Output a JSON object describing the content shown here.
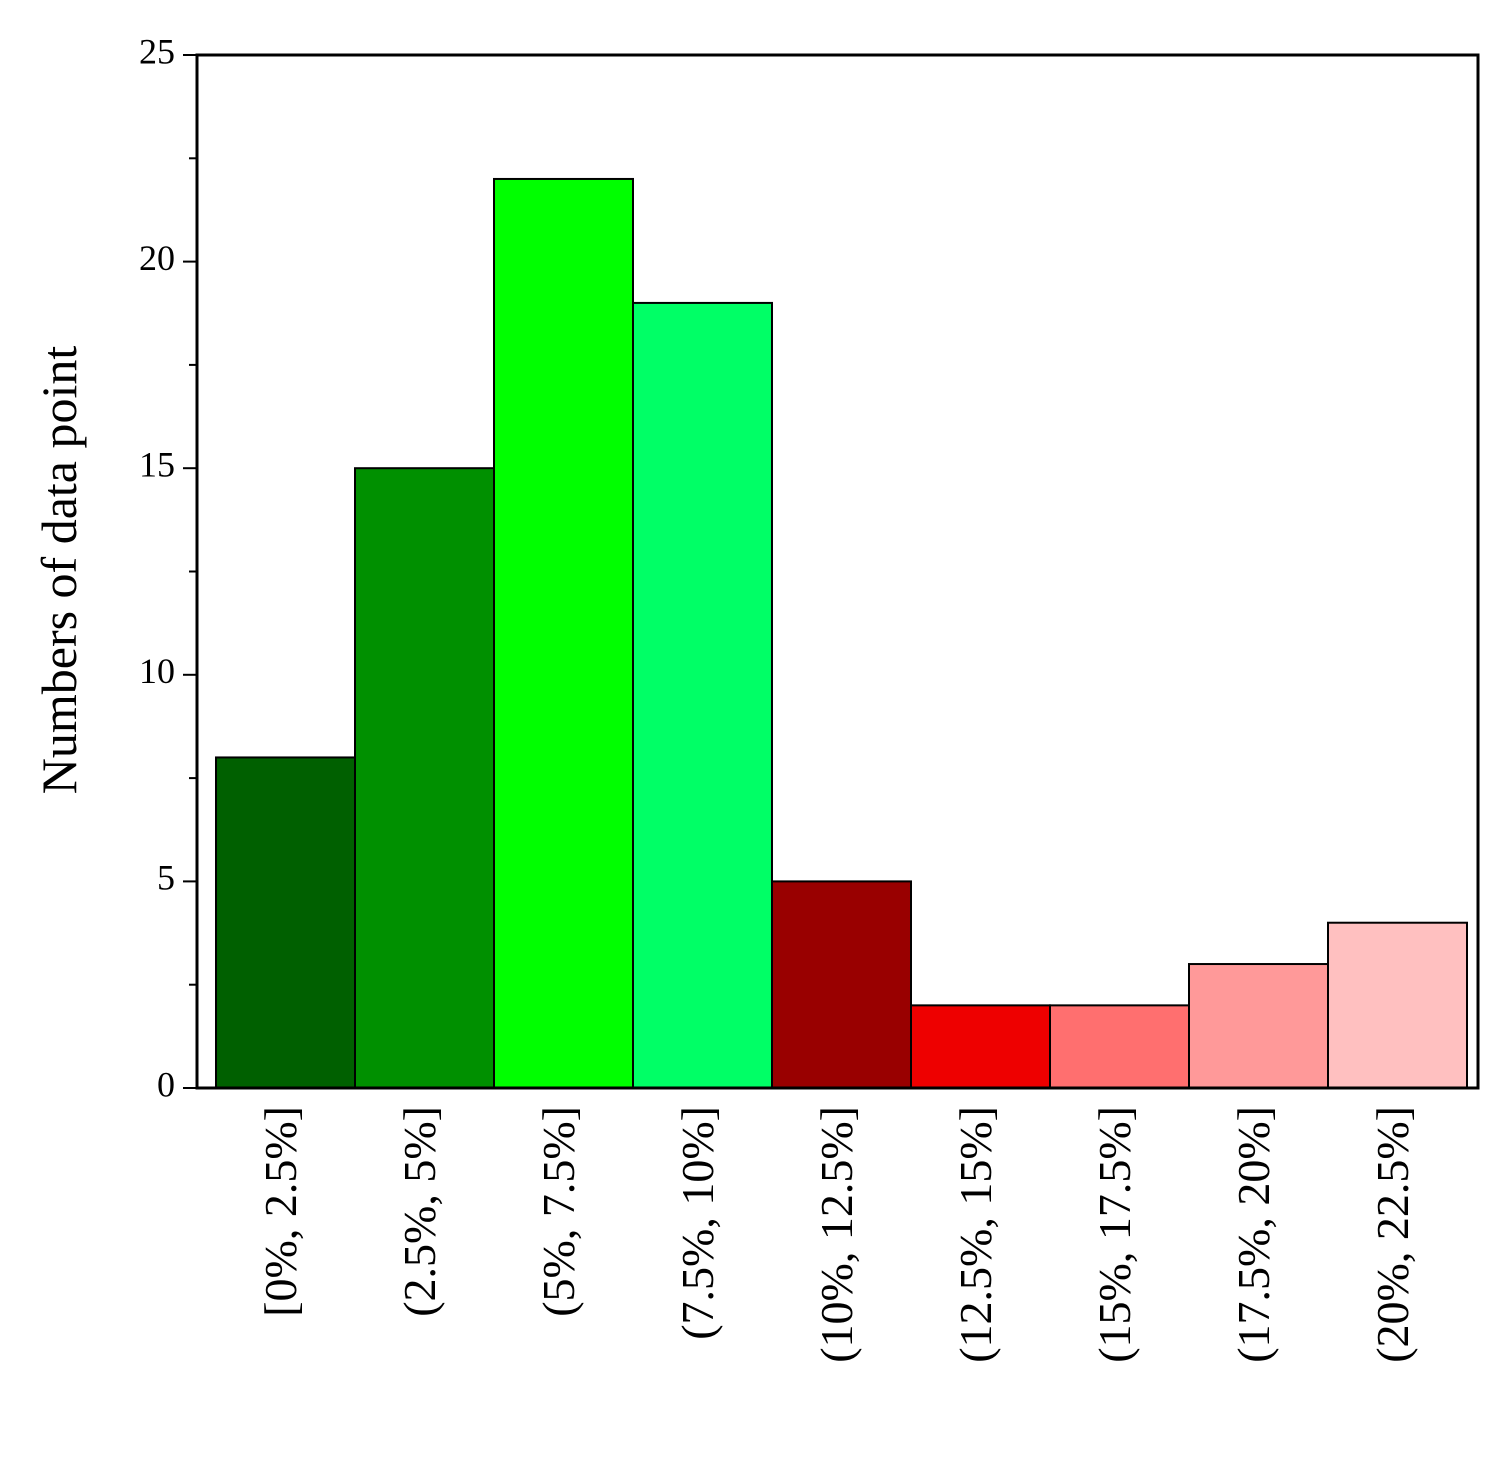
{
  "chart_data": {
    "type": "bar",
    "y_label": "Numbers of data point",
    "categories": [
      "[0%, 2.5%]",
      "(2.5%, 5%]",
      "(5%, 7.5%]",
      "(7.5%, 10%]",
      "(10%, 12.5%]",
      "(12.5%, 15%]",
      "(15%, 17.5%]",
      "(17.5%, 20%]",
      "(20%, 22.5%]"
    ],
    "values": [
      8,
      15,
      22,
      19,
      5,
      2,
      2,
      3,
      4
    ],
    "colors": [
      "#006000",
      "#009000",
      "#00ff00",
      "#00ff66",
      "#990000",
      "#ee0000",
      "#ff6f6f",
      "#ff9999",
      "#ffc0c0"
    ],
    "ylim": [
      0,
      25
    ],
    "yticks": [
      0,
      5,
      10,
      15,
      20,
      25
    ],
    "yminorticks": [
      2.5,
      7.5,
      12.5,
      17.5,
      22.5
    ],
    "grid": false
  }
}
